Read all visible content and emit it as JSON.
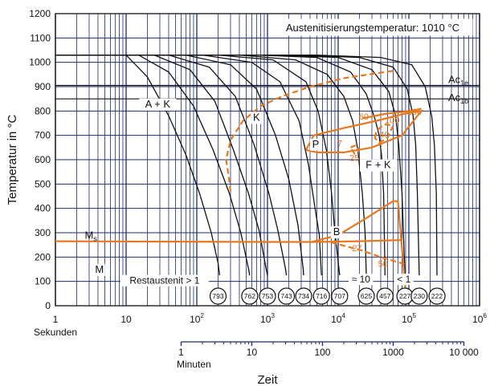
{
  "chart_data": {
    "type": "line",
    "title": "",
    "ylabel": "Temperatur in °C",
    "xlabel": "Zeit",
    "x_scale": "log",
    "xlim": [
      1,
      1000000
    ],
    "ylim": [
      0,
      1200
    ],
    "grid": true,
    "y_ticks": [
      "0",
      "100",
      "200",
      "300",
      "400",
      "500",
      "600",
      "700",
      "800",
      "900",
      "1000",
      "1100",
      "1200"
    ],
    "x_ticks_seconds": [
      {
        "value": 1,
        "base": "1",
        "exp": ""
      },
      {
        "value": 10,
        "base": "10",
        "exp": ""
      },
      {
        "value": 100,
        "base": "10",
        "exp": "2"
      },
      {
        "value": 1000,
        "base": "10",
        "exp": "3"
      },
      {
        "value": 10000,
        "base": "10",
        "exp": "4"
      },
      {
        "value": 100000,
        "base": "10",
        "exp": "5"
      },
      {
        "value": 1000000,
        "base": "10",
        "exp": "6"
      }
    ],
    "seconds_label": "Sekunden",
    "minutes_label": "Minuten",
    "x_ticks_minutes": [
      {
        "value": 1,
        "label": "1"
      },
      {
        "value": 10,
        "label": "10"
      },
      {
        "value": 100,
        "label": "100"
      },
      {
        "value": 1000,
        "label": "1000"
      },
      {
        "value": 10000,
        "label": "10 000"
      }
    ],
    "annotation": "Austenitisierungstemperatur: 1010 °C",
    "reference_lines": [
      {
        "name": "Ac1e",
        "base": "Ac",
        "sub": "1e",
        "y": 905
      },
      {
        "name": "Ac1b",
        "base": "Ac",
        "sub": "1b",
        "y": 850
      }
    ],
    "ms_label": {
      "base": "M",
      "sub": "s"
    },
    "regions": [
      {
        "label": "A + K",
        "x": 28,
        "y": 815
      },
      {
        "label": "K",
        "x": 700,
        "y": 760
      },
      {
        "label": "P",
        "x": 4800,
        "y": 650
      },
      {
        "label": "F + K",
        "x": 37000,
        "y": 565
      },
      {
        "label": "B",
        "x": 9500,
        "y": 290
      },
      {
        "label": "M",
        "x": 4.2,
        "y": 135
      }
    ],
    "notes": [
      {
        "text": "Restaustenit > 1",
        "x": 35,
        "y": 90
      },
      {
        "text": "≈ 10",
        "x": 21000,
        "y": 95
      },
      {
        "text": "< 1",
        "x": 85000,
        "y": 95
      }
    ],
    "hardness": [
      {
        "value": "793",
        "x": 200
      },
      {
        "value": "762",
        "x": 560
      },
      {
        "value": "753",
        "x": 1000
      },
      {
        "value": "743",
        "x": 1850
      },
      {
        "value": "734",
        "x": 3250
      },
      {
        "value": "716",
        "x": 5800
      },
      {
        "value": "707",
        "x": 10500
      },
      {
        "value": "625",
        "x": 25000
      },
      {
        "value": "457",
        "x": 46000
      },
      {
        "value": "227",
        "x": 88000
      },
      {
        "value": "230",
        "x": 140000
      },
      {
        "value": "222",
        "x": 250000
      }
    ],
    "percentages": [
      {
        "value": "60",
        "x": 23000,
        "y": 765
      },
      {
        "value": "100",
        "x": 58000,
        "y": 750
      },
      {
        "value": "100",
        "x": 120000,
        "y": 785
      },
      {
        "value": "40",
        "x": 45000,
        "y": 690
      },
      {
        "value": "7",
        "x": 10500,
        "y": 655
      },
      {
        "value": "25",
        "x": 17000,
        "y": 595
      },
      {
        "value": "27",
        "x": 18500,
        "y": 225
      },
      {
        "value": "50",
        "x": 43000,
        "y": 160
      }
    ],
    "series": [
      {
        "values": [
          [
            1,
            1030
          ],
          [
            10,
            1030
          ],
          [
            20,
            940
          ],
          [
            40,
            780
          ],
          [
            70,
            620
          ],
          [
            110,
            460
          ],
          [
            160,
            300
          ],
          [
            200,
            175
          ],
          [
            210,
            125
          ]
        ]
      },
      {
        "values": [
          [
            1,
            1030
          ],
          [
            15,
            1030
          ],
          [
            40,
            960
          ],
          [
            90,
            820
          ],
          [
            170,
            640
          ],
          [
            290,
            460
          ],
          [
            420,
            300
          ],
          [
            540,
            150
          ],
          [
            560,
            125
          ]
        ]
      },
      {
        "values": [
          [
            1,
            1030
          ],
          [
            25,
            1030
          ],
          [
            80,
            970
          ],
          [
            180,
            840
          ],
          [
            330,
            640
          ],
          [
            540,
            460
          ],
          [
            760,
            310
          ],
          [
            960,
            150
          ],
          [
            1000,
            125
          ]
        ]
      },
      {
        "values": [
          [
            1,
            1030
          ],
          [
            40,
            1030
          ],
          [
            150,
            980
          ],
          [
            350,
            860
          ],
          [
            650,
            660
          ],
          [
            1050,
            460
          ],
          [
            1400,
            310
          ],
          [
            1800,
            150
          ],
          [
            1850,
            125
          ]
        ]
      },
      {
        "values": [
          [
            1,
            1030
          ],
          [
            70,
            1030
          ],
          [
            300,
            990
          ],
          [
            700,
            890
          ],
          [
            1300,
            700
          ],
          [
            2000,
            520
          ],
          [
            2700,
            330
          ],
          [
            3200,
            150
          ],
          [
            3250,
            125
          ]
        ]
      },
      {
        "values": [
          [
            1,
            1030
          ],
          [
            120,
            1030
          ],
          [
            600,
            1000
          ],
          [
            1500,
            920
          ],
          [
            2800,
            760
          ],
          [
            3800,
            580
          ],
          [
            4600,
            420
          ],
          [
            5400,
            290
          ],
          [
            5800,
            125
          ]
        ]
      },
      {
        "values": [
          [
            1,
            1030
          ],
          [
            200,
            1030
          ],
          [
            1200,
            1010
          ],
          [
            3500,
            920
          ],
          [
            5200,
            800
          ],
          [
            6800,
            640
          ],
          [
            8000,
            470
          ],
          [
            9000,
            300
          ],
          [
            10500,
            125
          ]
        ]
      },
      {
        "values": [
          [
            1,
            1030
          ],
          [
            400,
            1030
          ],
          [
            2500,
            1010
          ],
          [
            7000,
            950
          ],
          [
            12000,
            860
          ],
          [
            16000,
            760
          ],
          [
            19000,
            640
          ],
          [
            22000,
            460
          ],
          [
            24000,
            300
          ],
          [
            25000,
            125
          ]
        ]
      },
      {
        "values": [
          [
            1,
            1030
          ],
          [
            700,
            1030
          ],
          [
            5000,
            1020
          ],
          [
            15000,
            960
          ],
          [
            25000,
            870
          ],
          [
            33000,
            770
          ],
          [
            38000,
            700
          ],
          [
            41000,
            620
          ],
          [
            44000,
            460
          ],
          [
            46000,
            125
          ]
        ]
      },
      {
        "values": [
          [
            1,
            1030
          ],
          [
            1200,
            1030
          ],
          [
            10000,
            1020
          ],
          [
            30000,
            970
          ],
          [
            52000,
            880
          ],
          [
            65000,
            780
          ],
          [
            72000,
            660
          ],
          [
            80000,
            460
          ],
          [
            88000,
            125
          ]
        ]
      },
      {
        "values": [
          [
            1,
            1030
          ],
          [
            2500,
            1030
          ],
          [
            20000,
            1020
          ],
          [
            60000,
            980
          ],
          [
            95000,
            890
          ],
          [
            115000,
            780
          ],
          [
            125000,
            660
          ],
          [
            132000,
            460
          ],
          [
            140000,
            125
          ]
        ]
      },
      {
        "values": [
          [
            1,
            1030
          ],
          [
            5000,
            1030
          ],
          [
            40000,
            1020
          ],
          [
            110000,
            990
          ],
          [
            170000,
            900
          ],
          [
            210000,
            780
          ],
          [
            230000,
            660
          ],
          [
            245000,
            460
          ],
          [
            250000,
            125
          ]
        ]
      }
    ],
    "transformation_boundaries": [
      {
        "name": "carbide-start",
        "style": "dashed",
        "values": [
          [
            300,
            470
          ],
          [
            280,
            540
          ],
          [
            260,
            600
          ],
          [
            300,
            680
          ],
          [
            450,
            760
          ],
          [
            800,
            820
          ],
          [
            1600,
            860
          ],
          [
            4000,
            900
          ],
          [
            12000,
            935
          ],
          [
            60000,
            965
          ]
        ]
      },
      {
        "name": "pearlite-nose",
        "style": "solid",
        "values": [
          [
            3500,
            640
          ],
          [
            4500,
            700
          ],
          [
            12000,
            730
          ],
          [
            35000,
            760
          ],
          [
            90000,
            790
          ],
          [
            150000,
            800
          ],
          [
            80000,
            700
          ],
          [
            30000,
            650
          ],
          [
            12000,
            630
          ],
          [
            5000,
            630
          ],
          [
            3500,
            640
          ]
        ]
      },
      {
        "name": "pearlite-60",
        "style": "solid",
        "values": [
          [
            22000,
            770
          ],
          [
            50000,
            790
          ],
          [
            110000,
            800
          ],
          [
            150000,
            810
          ]
        ]
      },
      {
        "name": "pearlite-40",
        "style": "dashed",
        "values": [
          [
            33000,
            690
          ],
          [
            35000,
            720
          ],
          [
            45000,
            745
          ],
          [
            60000,
            740
          ],
          [
            50000,
            690
          ],
          [
            38000,
            670
          ],
          [
            33000,
            690
          ]
        ]
      },
      {
        "name": "pearlite-small",
        "style": "dashed",
        "values": [
          [
            15000,
            650
          ],
          [
            18000,
            660
          ],
          [
            20000,
            640
          ],
          [
            17000,
            625
          ],
          [
            15000,
            650
          ]
        ]
      },
      {
        "name": "bainite-start",
        "style": "solid",
        "values": [
          [
            4000,
            260
          ],
          [
            10000,
            290
          ],
          [
            25000,
            360
          ],
          [
            60000,
            430
          ],
          [
            70000,
            430
          ],
          [
            90000,
            60
          ]
        ]
      },
      {
        "name": "bainite-end",
        "style": "dashed",
        "values": [
          [
            8000,
            260
          ],
          [
            20000,
            230
          ],
          [
            45000,
            195
          ],
          [
            90000,
            170
          ]
        ]
      },
      {
        "name": "Ms",
        "style": "solid",
        "values": [
          [
            1,
            265
          ],
          [
            1000,
            262
          ],
          [
            5000,
            262
          ],
          [
            20000,
            265
          ],
          [
            80000,
            270
          ]
        ]
      }
    ]
  }
}
